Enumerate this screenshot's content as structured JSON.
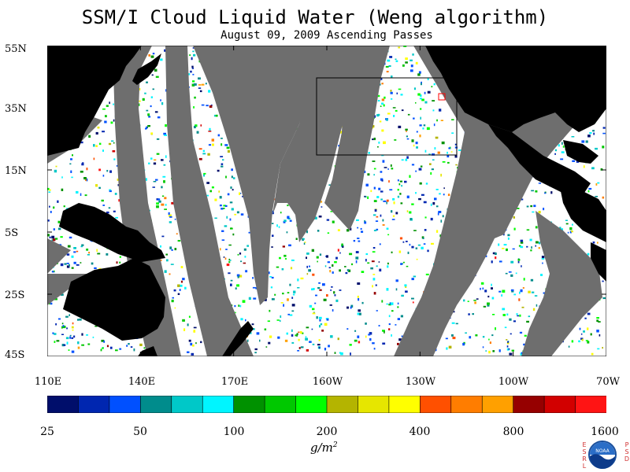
{
  "title": "SSM/I Cloud Liquid Water (Weng algorithm)",
  "subtitle": "August 09, 2009  Ascending Passes",
  "lat_ticks": [
    "55N",
    "35N",
    "15N",
    "5S",
    "25S",
    "45S"
  ],
  "lon_ticks": [
    "110E",
    "140E",
    "170E",
    "160W",
    "130W",
    "100W",
    "70W"
  ],
  "colorbar": {
    "colors": [
      "#000e6b",
      "#0026b0",
      "#0050ff",
      "#008c8c",
      "#00c8c8",
      "#00f5ff",
      "#009100",
      "#00c800",
      "#00ff00",
      "#b4b400",
      "#e6e600",
      "#ffff00",
      "#ff5000",
      "#ff7d00",
      "#ffa000",
      "#960000",
      "#d20000",
      "#ff1414"
    ],
    "labels": [
      "25",
      "50",
      "100",
      "200",
      "400",
      "800",
      "1600"
    ]
  },
  "units": "g/m",
  "units_sup": "2",
  "logo": {
    "left_letters": [
      "E",
      "S",
      "R",
      "L"
    ],
    "right_letters": [
      "P",
      "S",
      "D"
    ],
    "badge": "NOAA"
  }
}
